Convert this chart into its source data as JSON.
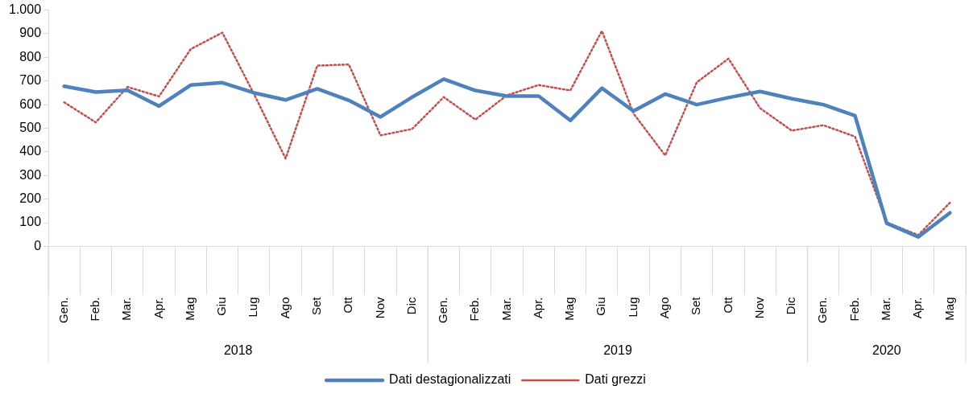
{
  "chart_data": {
    "type": "line",
    "categories": [
      "Gen.",
      "Feb.",
      "Mar.",
      "Apr.",
      "Mag",
      "Giu",
      "Lug",
      "Ago",
      "Set",
      "Ott",
      "Nov",
      "Dic",
      "Gen.",
      "Feb.",
      "Mar.",
      "Apr.",
      "Mag",
      "Giu",
      "Lug",
      "Ago",
      "Set",
      "Ott",
      "Nov",
      "Dic",
      "Gen.",
      "Feb.",
      "Mar.",
      "Apr.",
      "Mag"
    ],
    "series": [
      {
        "name": "Dati destagionalizzati",
        "color": "#4f81bd",
        "line_style": "solid",
        "values": [
          678,
          653,
          661,
          594,
          683,
          693,
          650,
          620,
          667,
          618,
          548,
          632,
          708,
          660,
          636,
          636,
          533,
          670,
          573,
          645,
          600,
          630,
          656,
          625,
          600,
          553,
          98,
          40,
          142
        ]
      },
      {
        "name": "Dati grezzi",
        "color": "#c0504d",
        "line_style": "dotted",
        "values": [
          610,
          525,
          675,
          635,
          835,
          905,
          645,
          372,
          765,
          770,
          470,
          497,
          632,
          537,
          640,
          683,
          660,
          912,
          562,
          385,
          695,
          795,
          585,
          490,
          513,
          465,
          102,
          48,
          185
        ]
      }
    ],
    "ylim": [
      0,
      1000
    ],
    "yticks": [
      0,
      100,
      200,
      300,
      400,
      500,
      600,
      700,
      800,
      900,
      {
        "value": 1000,
        "label": "1.000"
      }
    ],
    "annotations": [
      "2018",
      "2019",
      "2020"
    ],
    "grid": false,
    "legend": "bottom",
    "marker": "none"
  }
}
